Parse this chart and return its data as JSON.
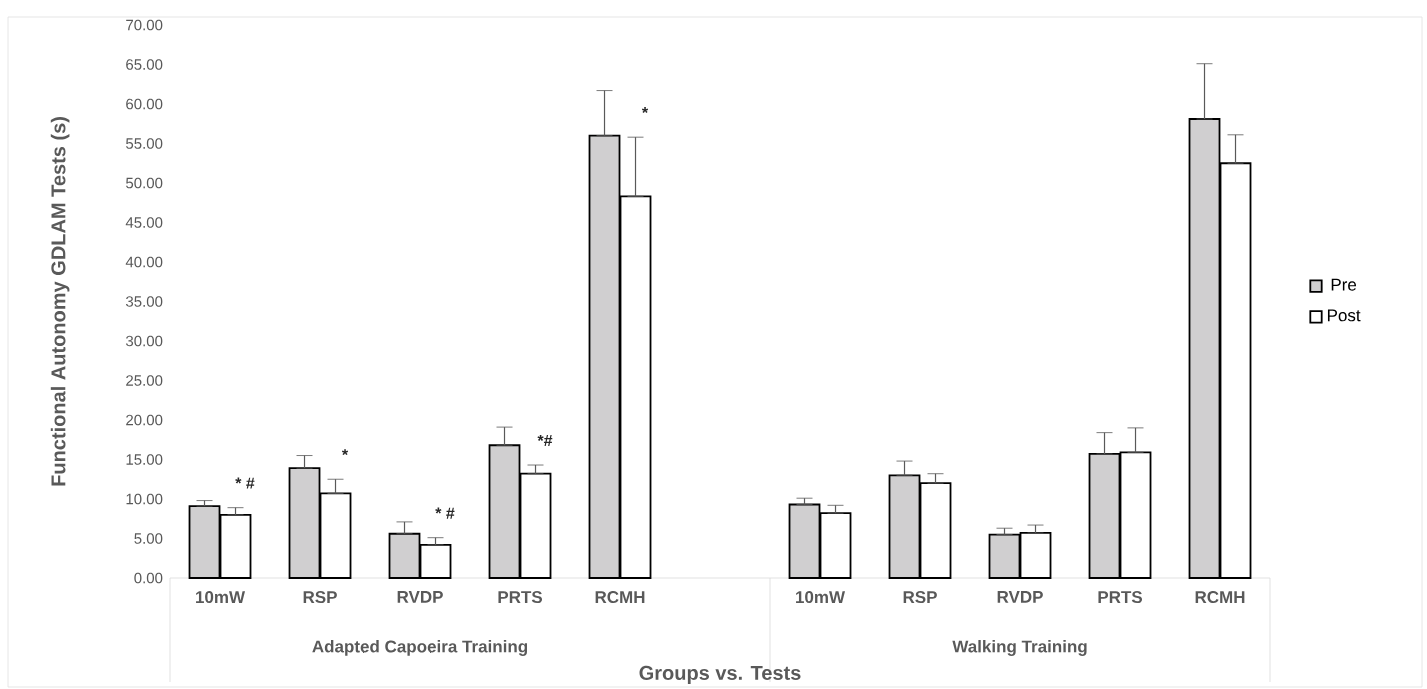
{
  "chart_data": {
    "type": "bar",
    "xlabel": "Groups vs. Tests",
    "ylabel": "Functional Autonomy GDLAM Tests (s)",
    "categories": [
      "10mW",
      "RSP",
      "RVDP",
      "PRTS",
      "RCMH",
      null,
      "10mW",
      "RSP",
      "RVDP",
      "PRTS",
      "RCMH"
    ],
    "series": [
      {
        "name": "Pre",
        "color": "#d0cfd0",
        "values": [
          9.1,
          13.9,
          5.6,
          16.8,
          56.0,
          null,
          9.3,
          13.0,
          5.5,
          15.7,
          58.1
        ],
        "errors": [
          [
            9.1,
            9.8
          ],
          [
            13.9,
            15.5
          ],
          [
            5.6,
            7.1
          ],
          [
            16.8,
            19.1
          ],
          [
            56.0,
            61.7
          ],
          null,
          [
            9.3,
            10.1
          ],
          [
            13.0,
            14.8
          ],
          [
            5.5,
            6.3
          ],
          [
            15.7,
            18.4
          ],
          [
            58.1,
            65.1
          ]
        ]
      },
      {
        "name": "Post",
        "color": "#ffffff",
        "values": [
          8.0,
          10.7,
          4.2,
          13.2,
          48.3,
          null,
          8.2,
          12.0,
          5.7,
          15.9,
          52.5
        ],
        "errors": [
          [
            8.0,
            8.9
          ],
          [
            10.7,
            12.5
          ],
          [
            4.2,
            5.1
          ],
          [
            13.2,
            14.3
          ],
          [
            48.3,
            55.8
          ],
          null,
          [
            8.2,
            9.2
          ],
          [
            12.0,
            13.2
          ],
          [
            5.7,
            6.7
          ],
          [
            15.9,
            19.0
          ],
          [
            52.5,
            56.1
          ]
        ]
      }
    ],
    "ylim": [
      0,
      70
    ],
    "yticks": [
      {
        "value": 0,
        "label": "0.00"
      },
      {
        "value": 5,
        "label": "5.00"
      },
      {
        "value": 10,
        "label": "10.00"
      },
      {
        "value": 15,
        "label": "15.00"
      },
      {
        "value": 20,
        "label": "20.00"
      },
      {
        "value": 25,
        "label": "25.00"
      },
      {
        "value": 30,
        "label": "30.00"
      },
      {
        "value": 35,
        "label": "35.00"
      },
      {
        "value": 40,
        "label": "40.00"
      },
      {
        "value": 45,
        "label": "45.00"
      },
      {
        "value": 50,
        "label": "50.00"
      },
      {
        "value": 55,
        "label": "55.00"
      },
      {
        "value": 60,
        "label": "60.00"
      },
      {
        "value": 65,
        "label": "65.00"
      },
      {
        "value": 70,
        "label": "70.00"
      }
    ],
    "annotations": [
      "Adapted Capoeira Training",
      "Walking Training",
      "* #",
      "*",
      "* #",
      "*#",
      "*"
    ],
    "legend": "right",
    "grid": false
  }
}
